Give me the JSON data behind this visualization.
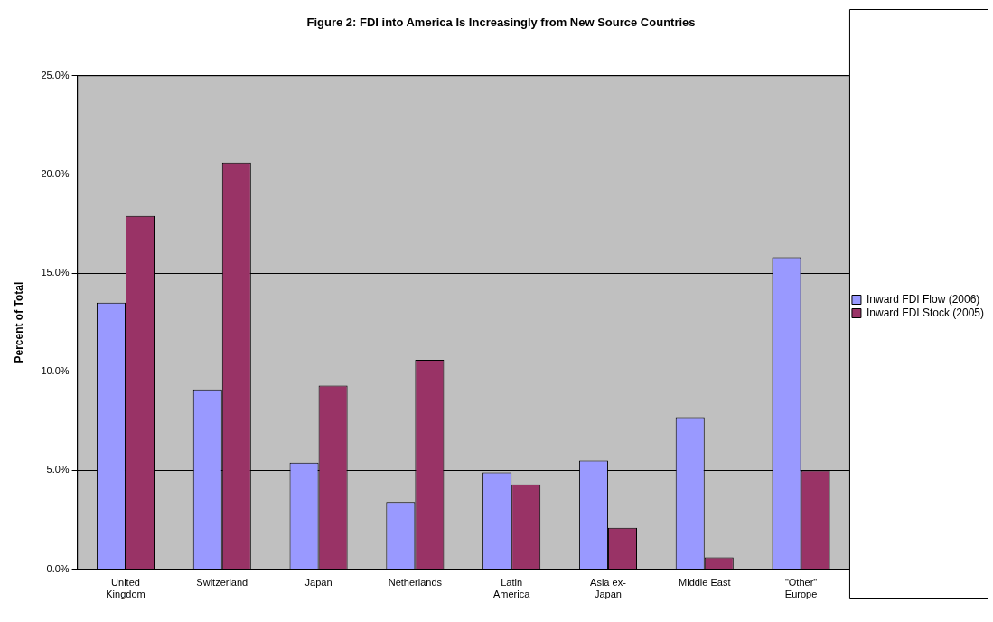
{
  "chart_data": {
    "type": "bar",
    "title": "Figure 2: FDI into America Is Increasingly from New Source Countries",
    "ylabel": "Percent of Total",
    "categories": [
      "United Kingdom",
      "Switzerland",
      "Japan",
      "Netherlands",
      "Latin America",
      "Asia ex-Japan",
      "Middle East",
      "\"Other\" Europe"
    ],
    "series": [
      {
        "name": "Inward FDI Flow (2006)",
        "color": "#9999ff",
        "values": [
          13.5,
          9.1,
          5.4,
          3.4,
          4.9,
          5.5,
          7.7,
          15.8
        ]
      },
      {
        "name": "Inward FDI Stock (2005)",
        "color": "#993366",
        "values": [
          17.9,
          20.6,
          9.3,
          10.6,
          4.3,
          2.1,
          0.6,
          5.0
        ]
      }
    ],
    "ylim": [
      0,
      25
    ],
    "yticks": [
      {
        "value": 0,
        "label": "0.0%"
      },
      {
        "value": 5,
        "label": "5.0%"
      },
      {
        "value": 10,
        "label": "10.0%"
      },
      {
        "value": 15,
        "label": "15.0%"
      },
      {
        "value": 20,
        "label": "20.0%"
      },
      {
        "value": 25,
        "label": "25.0%"
      }
    ],
    "grid": "y",
    "legend": "right"
  }
}
